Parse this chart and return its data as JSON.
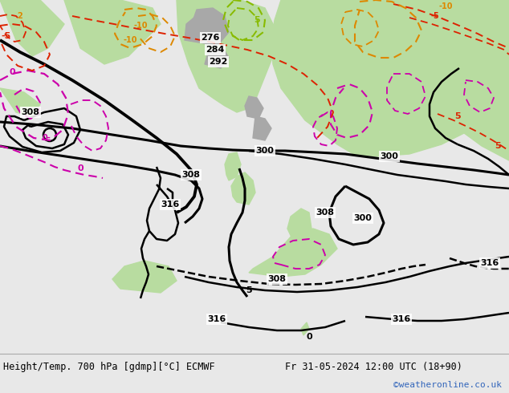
{
  "title_left": "Height/Temp. 700 hPa [gdmp][°C] ECMWF",
  "title_right": "Fr 31-05-2024 12:00 UTC (18+90)",
  "watermark": "©weatheronline.co.uk",
  "bg_ocean": "#d8d8d8",
  "bg_land_green": "#b8dca0",
  "bg_land_light": "#d0eabc",
  "bg_terrain_gray": "#b0b0b0",
  "footer_bg": "#e8e8e8",
  "footer_text_color": "#000000",
  "watermark_color": "#3366bb",
  "color_black": "#000000",
  "color_magenta": "#cc00aa",
  "color_red": "#dd2200",
  "color_orange": "#dd8800",
  "color_lime": "#88bb00",
  "fig_width": 6.34,
  "fig_height": 4.9,
  "dpi": 100
}
